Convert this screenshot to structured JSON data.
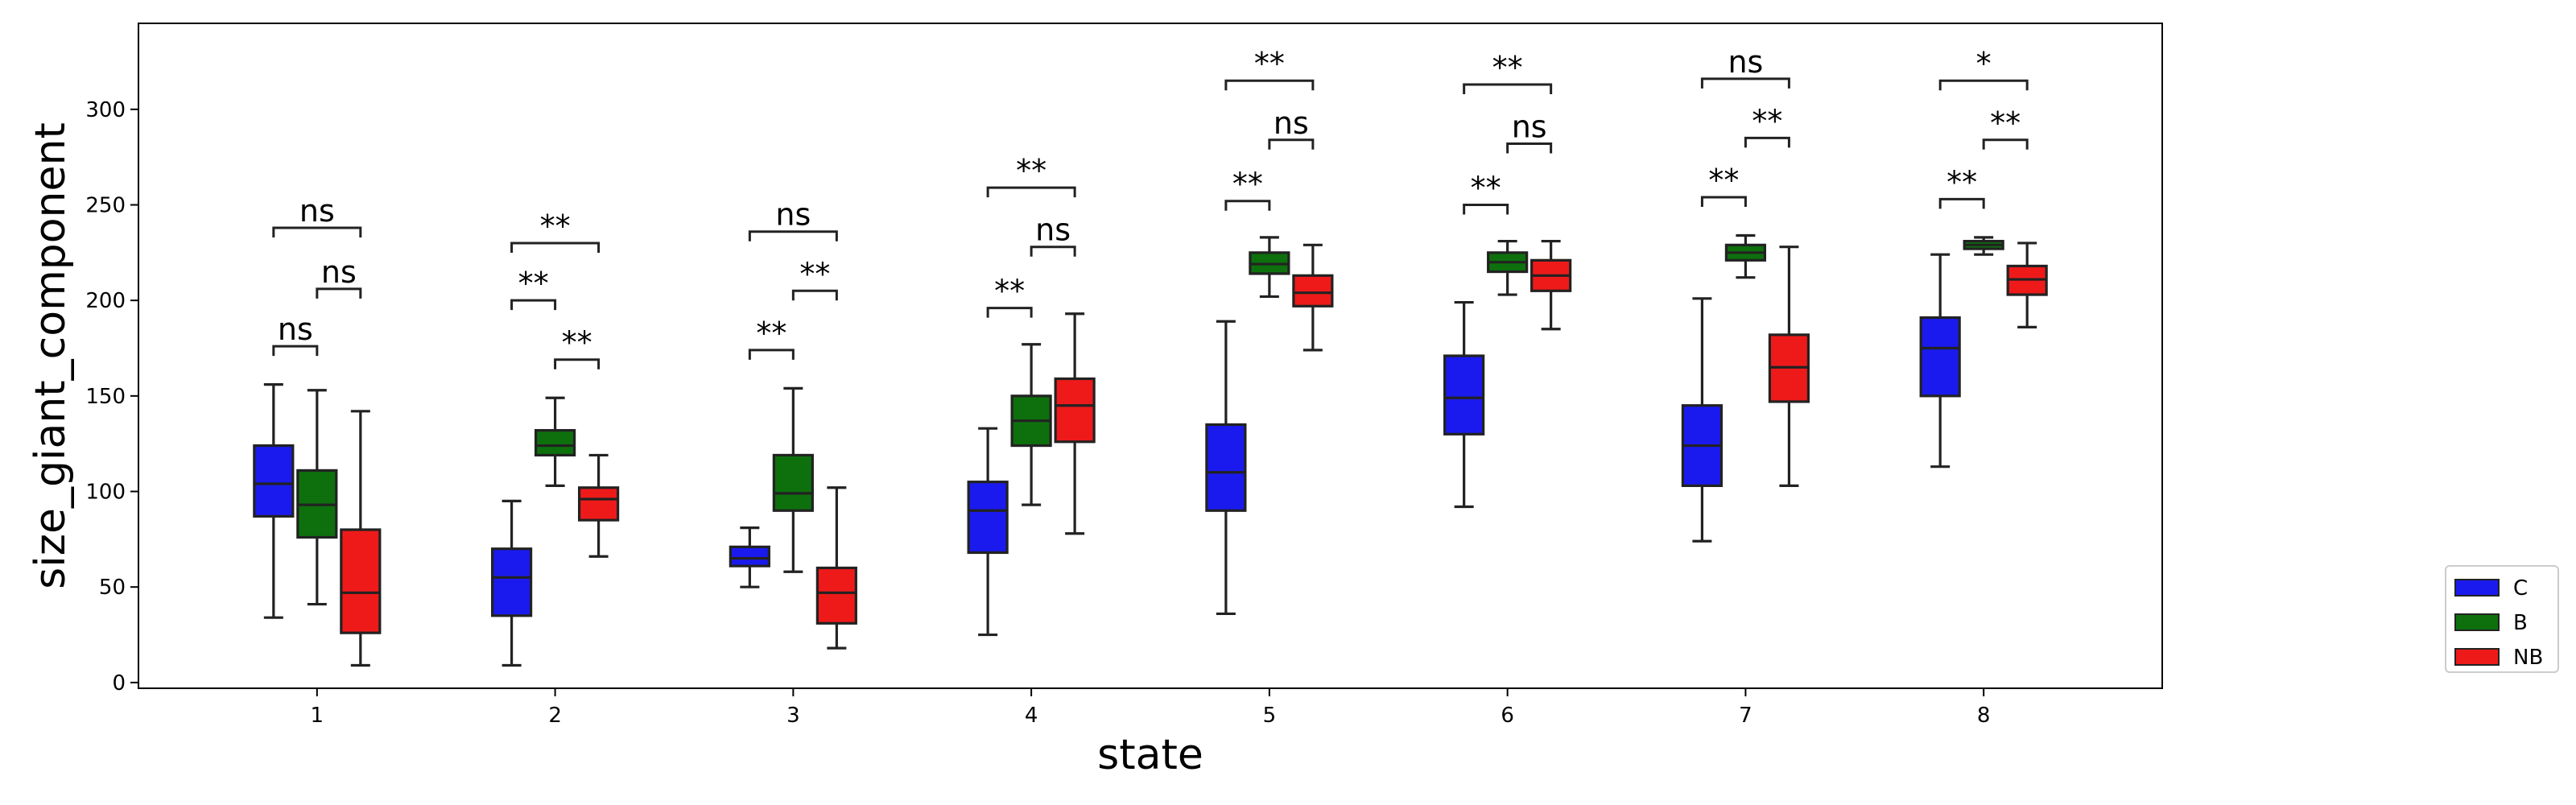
{
  "chart_data": {
    "type": "box",
    "xlabel": "state",
    "ylabel": "size_giant_component",
    "categories": [
      "1",
      "2",
      "3",
      "4",
      "5",
      "6",
      "7",
      "8"
    ],
    "ylim": [
      -3,
      345
    ],
    "yticks": [
      0,
      50,
      100,
      150,
      200,
      250,
      300
    ],
    "legend_position": "outside-right-bottom",
    "series": [
      {
        "name": "C",
        "color": "#1a1aee",
        "boxes": [
          {
            "whislo": 34,
            "q1": 87,
            "med": 104,
            "q3": 124,
            "whishi": 156
          },
          {
            "whislo": 9,
            "q1": 35,
            "med": 55,
            "q3": 70,
            "whishi": 95
          },
          {
            "whislo": 50,
            "q1": 61,
            "med": 65,
            "q3": 71,
            "whishi": 81
          },
          {
            "whislo": 25,
            "q1": 68,
            "med": 90,
            "q3": 105,
            "whishi": 133
          },
          {
            "whislo": 36,
            "q1": 90,
            "med": 110,
            "q3": 135,
            "whishi": 189
          },
          {
            "whislo": 92,
            "q1": 130,
            "med": 149,
            "q3": 171,
            "whishi": 199
          },
          {
            "whislo": 74,
            "q1": 103,
            "med": 124,
            "q3": 145,
            "whishi": 201
          },
          {
            "whislo": 113,
            "q1": 150,
            "med": 175,
            "q3": 191,
            "whishi": 224
          }
        ]
      },
      {
        "name": "B",
        "color": "#0d700d",
        "boxes": [
          {
            "whislo": 41,
            "q1": 76,
            "med": 93,
            "q3": 111,
            "whishi": 153
          },
          {
            "whislo": 103,
            "q1": 119,
            "med": 124,
            "q3": 132,
            "whishi": 149
          },
          {
            "whislo": 58,
            "q1": 90,
            "med": 99,
            "q3": 119,
            "whishi": 154
          },
          {
            "whislo": 93,
            "q1": 124,
            "med": 137,
            "q3": 150,
            "whishi": 177
          },
          {
            "whislo": 202,
            "q1": 214,
            "med": 219,
            "q3": 225,
            "whishi": 233
          },
          {
            "whislo": 203,
            "q1": 215,
            "med": 220,
            "q3": 225,
            "whishi": 231
          },
          {
            "whislo": 212,
            "q1": 221,
            "med": 225,
            "q3": 229,
            "whishi": 234
          },
          {
            "whislo": 224,
            "q1": 227,
            "med": 229,
            "q3": 231,
            "whishi": 233
          }
        ]
      },
      {
        "name": "NB",
        "color": "#ee1a1a",
        "boxes": [
          {
            "whislo": 9,
            "q1": 26,
            "med": 47,
            "q3": 80,
            "whishi": 142
          },
          {
            "whislo": 66,
            "q1": 85,
            "med": 96,
            "q3": 102,
            "whishi": 119
          },
          {
            "whislo": 18,
            "q1": 31,
            "med": 47,
            "q3": 60,
            "whishi": 102
          },
          {
            "whislo": 78,
            "q1": 126,
            "med": 145,
            "q3": 159,
            "whishi": 193
          },
          {
            "whislo": 174,
            "q1": 197,
            "med": 204,
            "q3": 213,
            "whishi": 229
          },
          {
            "whislo": 185,
            "q1": 205,
            "med": 213,
            "q3": 221,
            "whishi": 231
          },
          {
            "whislo": 103,
            "q1": 147,
            "med": 165,
            "q3": 182,
            "whishi": 228
          },
          {
            "whislo": 186,
            "q1": 203,
            "med": 211,
            "q3": 218,
            "whishi": 230
          }
        ]
      }
    ],
    "annotations": [
      {
        "category": "1",
        "from": "C",
        "to": "B",
        "y": 176,
        "text": "ns"
      },
      {
        "category": "1",
        "from": "B",
        "to": "NB",
        "y": 206,
        "text": "ns"
      },
      {
        "category": "1",
        "from": "C",
        "to": "NB",
        "y": 238,
        "text": "ns"
      },
      {
        "category": "2",
        "from": "C",
        "to": "B",
        "y": 200,
        "text": "**"
      },
      {
        "category": "2",
        "from": "B",
        "to": "NB",
        "y": 169,
        "text": "**"
      },
      {
        "category": "2",
        "from": "C",
        "to": "NB",
        "y": 230,
        "text": "**"
      },
      {
        "category": "3",
        "from": "C",
        "to": "B",
        "y": 174,
        "text": "**"
      },
      {
        "category": "3",
        "from": "B",
        "to": "NB",
        "y": 205,
        "text": "**"
      },
      {
        "category": "3",
        "from": "C",
        "to": "NB",
        "y": 236,
        "text": "ns"
      },
      {
        "category": "4",
        "from": "C",
        "to": "B",
        "y": 196,
        "text": "**"
      },
      {
        "category": "4",
        "from": "B",
        "to": "NB",
        "y": 228,
        "text": "ns"
      },
      {
        "category": "4",
        "from": "C",
        "to": "NB",
        "y": 259,
        "text": "**"
      },
      {
        "category": "5",
        "from": "C",
        "to": "B",
        "y": 252,
        "text": "**"
      },
      {
        "category": "5",
        "from": "B",
        "to": "NB",
        "y": 284,
        "text": "ns"
      },
      {
        "category": "5",
        "from": "C",
        "to": "NB",
        "y": 315,
        "text": "**"
      },
      {
        "category": "6",
        "from": "C",
        "to": "B",
        "y": 250,
        "text": "**"
      },
      {
        "category": "6",
        "from": "B",
        "to": "NB",
        "y": 282,
        "text": "ns"
      },
      {
        "category": "6",
        "from": "C",
        "to": "NB",
        "y": 313,
        "text": "**"
      },
      {
        "category": "7",
        "from": "C",
        "to": "B",
        "y": 254,
        "text": "**"
      },
      {
        "category": "7",
        "from": "B",
        "to": "NB",
        "y": 285,
        "text": "**"
      },
      {
        "category": "7",
        "from": "C",
        "to": "NB",
        "y": 316,
        "text": "ns"
      },
      {
        "category": "8",
        "from": "C",
        "to": "B",
        "y": 253,
        "text": "**"
      },
      {
        "category": "8",
        "from": "B",
        "to": "NB",
        "y": 284,
        "text": "**"
      },
      {
        "category": "8",
        "from": "C",
        "to": "NB",
        "y": 315,
        "text": "*"
      }
    ]
  }
}
